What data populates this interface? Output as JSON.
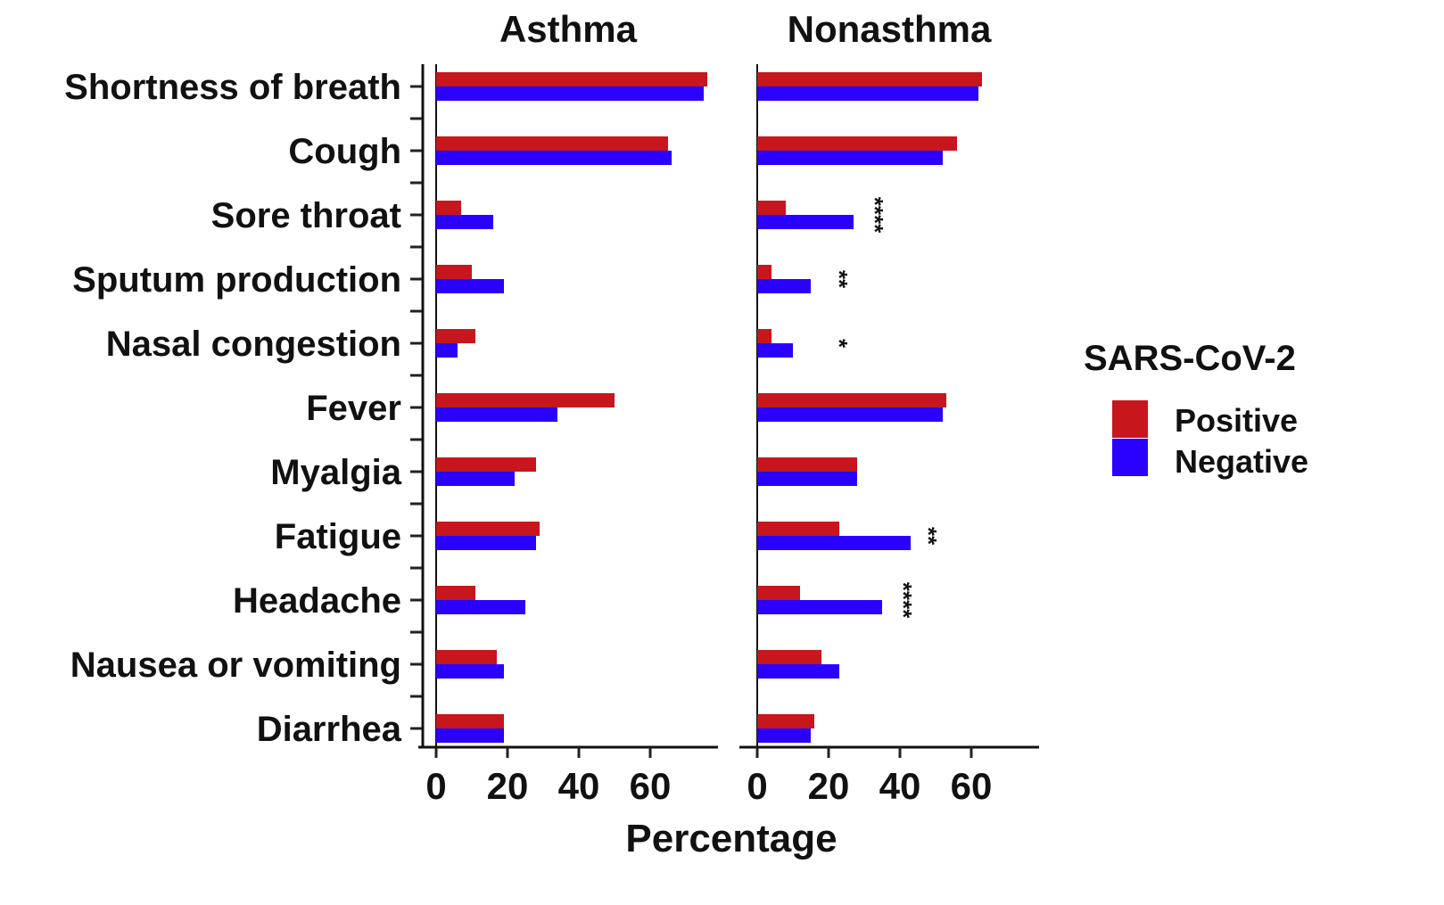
{
  "chart_data": {
    "type": "bar",
    "orientation": "horizontal",
    "categories": [
      "Shortness of breath",
      "Cough",
      "Sore throat",
      "Sputum production",
      "Nasal congestion",
      "Fever",
      "Myalgia",
      "Fatigue",
      "Headache",
      "Nausea or vomiting",
      "Diarrhea"
    ],
    "xlabel": "Percentage",
    "ylabel": "",
    "xlim": [
      -5,
      79
    ],
    "xticks": [
      0,
      20,
      40,
      60
    ],
    "grid": false,
    "legend": {
      "title": "SARS-CoV-2",
      "placement": "right"
    },
    "colors": {
      "Positive": "#c8161d",
      "Negative": "#2a00ff"
    },
    "panels": [
      {
        "title": "Asthma",
        "series": [
          {
            "name": "Positive",
            "values": [
              76,
              65,
              7,
              10,
              11,
              50,
              28,
              29,
              11,
              17,
              19
            ]
          },
          {
            "name": "Negative",
            "values": [
              75,
              66,
              16,
              19,
              6,
              34,
              22,
              28,
              25,
              19,
              19
            ]
          }
        ],
        "annotations": []
      },
      {
        "title": "Nonasthma",
        "series": [
          {
            "name": "Positive",
            "values": [
              63,
              56,
              8,
              4,
              4,
              53,
              28,
              23,
              12,
              18,
              16
            ]
          },
          {
            "name": "Negative",
            "values": [
              62,
              52,
              27,
              15,
              10,
              52,
              28,
              43,
              35,
              23,
              15
            ]
          }
        ],
        "annotations": [
          {
            "category": "Sore throat",
            "x": 33,
            "text": "****"
          },
          {
            "category": "Sputum production",
            "x": 23,
            "text": "**"
          },
          {
            "category": "Nasal congestion",
            "x": 23,
            "text": "*"
          },
          {
            "category": "Fatigue",
            "x": 48,
            "text": "**"
          },
          {
            "category": "Headache",
            "x": 41,
            "text": "****"
          }
        ]
      }
    ]
  }
}
